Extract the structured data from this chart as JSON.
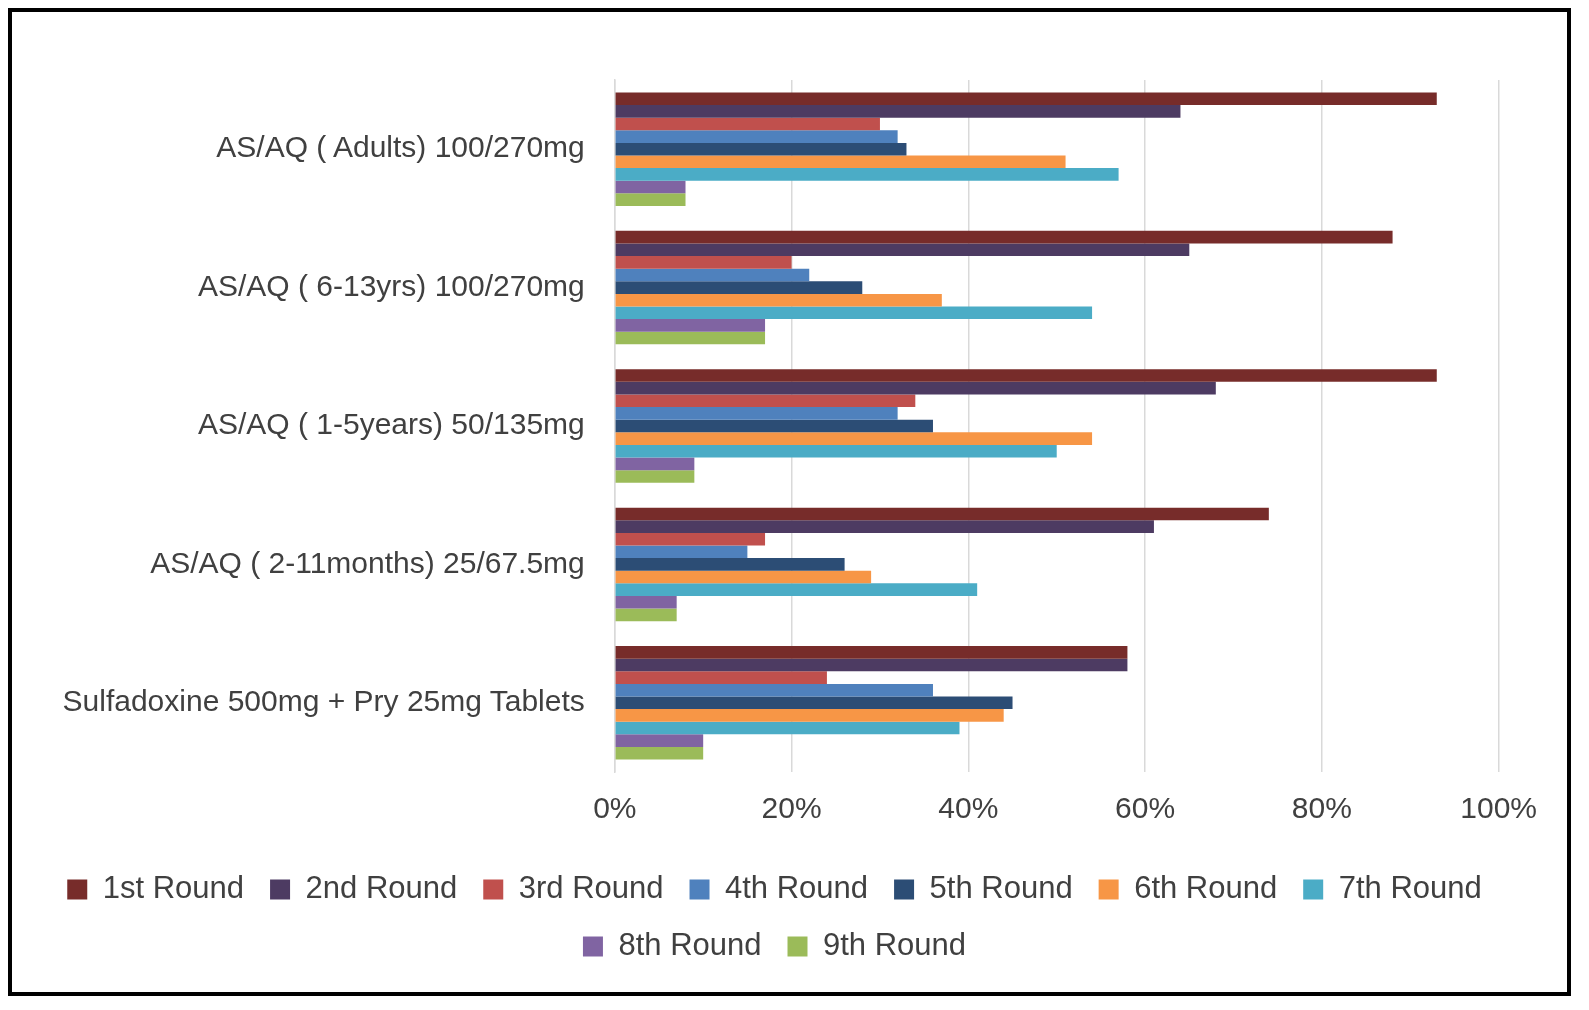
{
  "chart_data": {
    "type": "bar",
    "orientation": "horizontal",
    "categories": [
      "AS/AQ ( Adults) 100/270mg",
      "AS/AQ ( 6-13yrs) 100/270mg",
      "AS/AQ ( 1-5years) 50/135mg",
      "AS/AQ ( 2-11months) 25/67.5mg",
      "Sulfadoxine 500mg + Pry 25mg Tablets"
    ],
    "series": [
      {
        "name": "1st Round",
        "color": "#772c2a",
        "values": [
          93,
          88,
          93,
          74,
          58
        ]
      },
      {
        "name": "2nd Round",
        "color": "#4d3b62",
        "values": [
          64,
          65,
          68,
          61,
          58
        ]
      },
      {
        "name": "3rd Round",
        "color": "#c0504d",
        "values": [
          30,
          20,
          34,
          17,
          24
        ]
      },
      {
        "name": "4th Round",
        "color": "#4f81bd",
        "values": [
          32,
          22,
          32,
          15,
          36
        ]
      },
      {
        "name": "5th Round",
        "color": "#2c4d75",
        "values": [
          33,
          28,
          36,
          26,
          45
        ]
      },
      {
        "name": "6th Round",
        "color": "#f79646",
        "values": [
          51,
          37,
          54,
          29,
          44
        ]
      },
      {
        "name": "7th Round",
        "color": "#4bacc6",
        "values": [
          57,
          54,
          50,
          41,
          39
        ]
      },
      {
        "name": "8th Round",
        "color": "#8064a2",
        "values": [
          8,
          17,
          9,
          7,
          10
        ]
      },
      {
        "name": "9th Round",
        "color": "#9bbb59",
        "values": [
          8,
          17,
          9,
          7,
          10
        ]
      }
    ],
    "xlim": [
      0,
      100
    ],
    "xticks": [
      {
        "value": 0,
        "label": "0%"
      },
      {
        "value": 20,
        "label": "20%"
      },
      {
        "value": 40,
        "label": "40%"
      },
      {
        "value": 60,
        "label": "60%"
      },
      {
        "value": 80,
        "label": "80%"
      },
      {
        "value": 100,
        "label": "100%"
      }
    ],
    "grid": "x",
    "legend": "bottom"
  }
}
